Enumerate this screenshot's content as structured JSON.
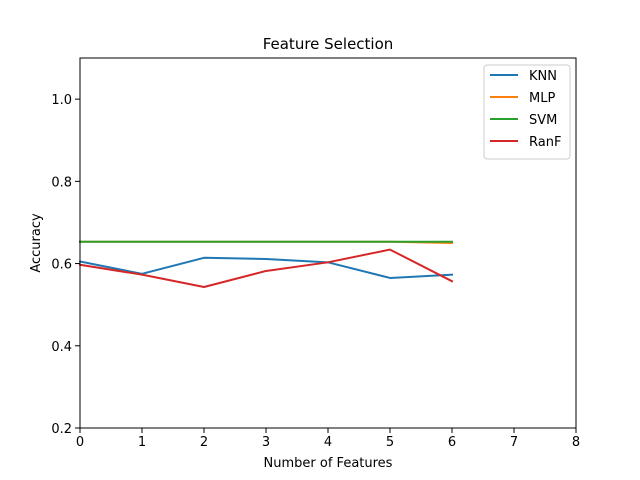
{
  "chart_data": {
    "type": "line",
    "title": "Feature Selection",
    "xlabel": "Number of Features",
    "ylabel": "Accuracy",
    "xlim": [
      0,
      8
    ],
    "ylim": [
      0.2,
      1.1
    ],
    "xticks": [
      0,
      1,
      2,
      3,
      4,
      5,
      6,
      7,
      8
    ],
    "yticks": [
      0.2,
      0.4,
      0.6,
      0.8,
      1.0
    ],
    "xtick_labels": [
      "0",
      "1",
      "2",
      "3",
      "4",
      "5",
      "6",
      "7",
      "8"
    ],
    "ytick_labels": [
      "0.2",
      "0.4",
      "0.6",
      "0.8",
      "1.0"
    ],
    "grid": false,
    "legend_position": "top-right",
    "x": [
      0,
      1,
      2,
      3,
      4,
      5,
      6
    ],
    "series": [
      {
        "name": "KNN",
        "color": "#1f77b4",
        "values": [
          0.605,
          0.575,
          0.614,
          0.611,
          0.603,
          0.565,
          0.573
        ]
      },
      {
        "name": "MLP",
        "color": "#ff7f0e",
        "values": [
          0.653,
          0.653,
          0.653,
          0.653,
          0.653,
          0.653,
          0.65
        ]
      },
      {
        "name": "SVM",
        "color": "#2ca02c",
        "values": [
          0.653,
          0.653,
          0.653,
          0.653,
          0.653,
          0.653,
          0.653
        ]
      },
      {
        "name": "RanF",
        "color": "#d62728",
        "values": [
          0.597,
          0.573,
          0.543,
          0.582,
          0.603,
          0.634,
          0.557
        ]
      }
    ]
  }
}
